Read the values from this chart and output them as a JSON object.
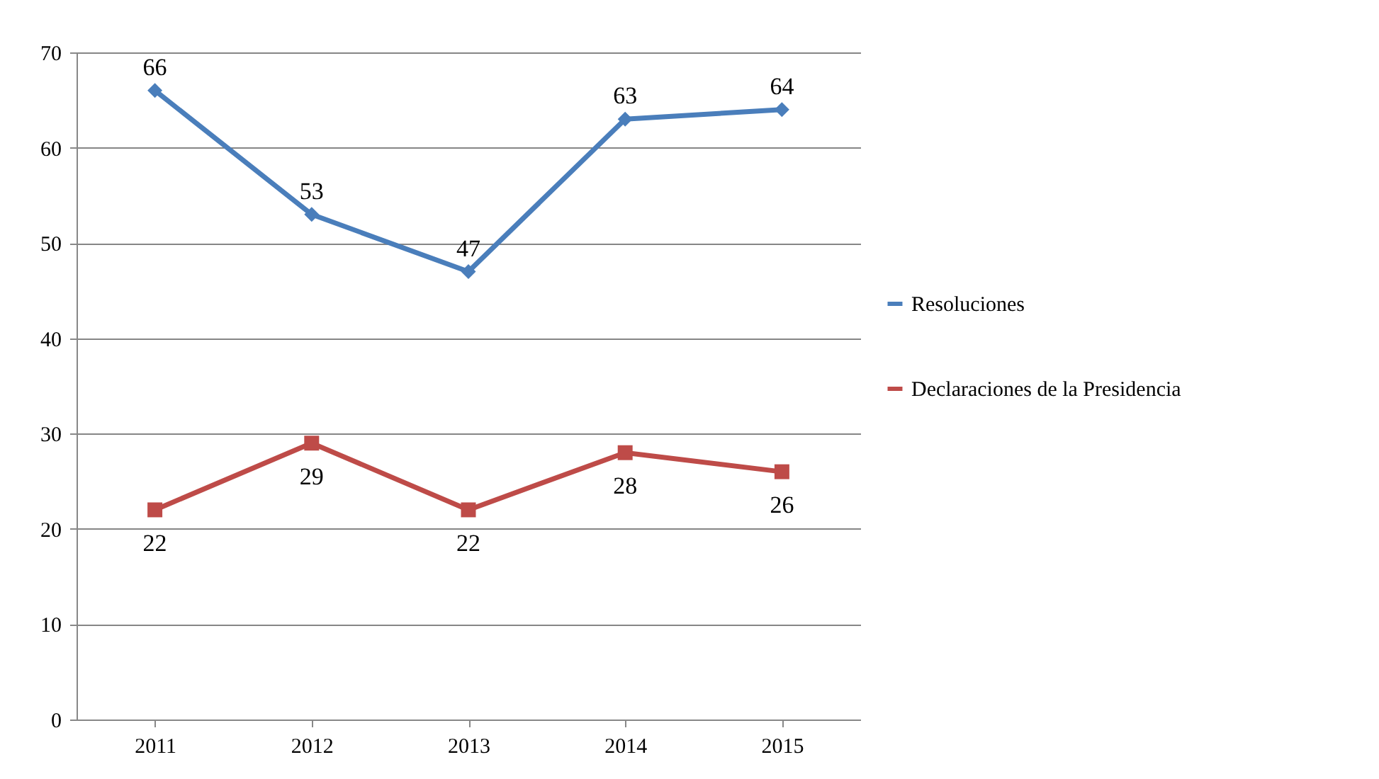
{
  "chart_data": {
    "type": "line",
    "categories": [
      "2011",
      "2012",
      "2013",
      "2014",
      "2015"
    ],
    "series": [
      {
        "name": "Resoluciones",
        "color": "#4a7ebb",
        "marker": "diamond",
        "values": [
          66,
          53,
          47,
          63,
          64
        ]
      },
      {
        "name": "Declaraciones de la Presidencia",
        "color": "#be4b48",
        "marker": "square",
        "values": [
          22,
          29,
          22,
          28,
          26
        ]
      }
    ],
    "ylim": [
      0,
      70
    ],
    "yticks": [
      0,
      10,
      20,
      30,
      40,
      50,
      60,
      70
    ],
    "grid": "y",
    "legend": "right",
    "data_labels": true,
    "line_style": "solid"
  }
}
